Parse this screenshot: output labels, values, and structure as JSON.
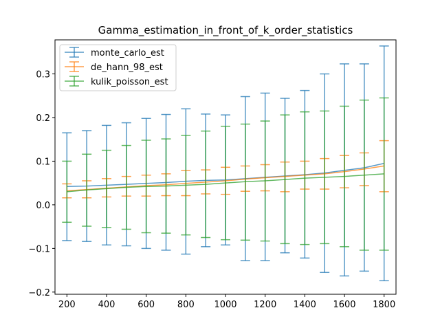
{
  "chart_data": {
    "type": "line",
    "title": "Gamma_estimation_in_front_of_k_order_statistics",
    "xlabel": "",
    "ylabel": "",
    "x": [
      200,
      300,
      400,
      500,
      600,
      700,
      800,
      900,
      1000,
      1100,
      1200,
      1300,
      1400,
      1500,
      1600,
      1700,
      1800
    ],
    "xlim": [
      140,
      1860
    ],
    "ylim": [
      -0.205,
      0.378
    ],
    "xticks": [
      200,
      400,
      600,
      800,
      1000,
      1200,
      1400,
      1600,
      1800
    ],
    "yticks": [
      -0.2,
      -0.1,
      0.0,
      0.1,
      0.2,
      0.3
    ],
    "ytick_labels": [
      "−0.2",
      "−0.1",
      "0.0",
      "0.1",
      "0.2",
      "0.3"
    ],
    "grid": false,
    "legend_position": "top-left",
    "series": [
      {
        "name": "monte_carlo_est",
        "color": "#1f77b4",
        "values": [
          0.042,
          0.043,
          0.045,
          0.047,
          0.049,
          0.051,
          0.054,
          0.056,
          0.057,
          0.06,
          0.063,
          0.066,
          0.069,
          0.073,
          0.079,
          0.085,
          0.095
        ],
        "error_upper": [
          0.165,
          0.17,
          0.182,
          0.188,
          0.198,
          0.207,
          0.22,
          0.208,
          0.206,
          0.248,
          0.256,
          0.244,
          0.262,
          0.3,
          0.323,
          0.323,
          0.364
        ],
        "error_lower": [
          -0.082,
          -0.084,
          -0.092,
          -0.094,
          -0.1,
          -0.104,
          -0.113,
          -0.096,
          -0.092,
          -0.128,
          -0.128,
          -0.11,
          -0.122,
          -0.155,
          -0.163,
          -0.152,
          -0.174
        ]
      },
      {
        "name": "de_hann_98_est",
        "color": "#ff7f0e",
        "values": [
          0.032,
          0.035,
          0.038,
          0.041,
          0.044,
          0.046,
          0.049,
          0.052,
          0.055,
          0.059,
          0.062,
          0.065,
          0.068,
          0.071,
          0.076,
          0.082,
          0.089
        ],
        "error_upper": [
          0.048,
          0.055,
          0.06,
          0.065,
          0.068,
          0.071,
          0.079,
          0.08,
          0.086,
          0.089,
          0.092,
          0.098,
          0.1,
          0.106,
          0.113,
          0.119,
          0.147
        ],
        "error_lower": [
          0.016,
          0.016,
          0.018,
          0.02,
          0.02,
          0.021,
          0.021,
          0.025,
          0.024,
          0.031,
          0.032,
          0.03,
          0.036,
          0.036,
          0.039,
          0.044,
          0.03
        ]
      },
      {
        "name": "kulik_poisson_est",
        "color": "#2ca02c",
        "values": [
          0.03,
          0.034,
          0.037,
          0.04,
          0.042,
          0.043,
          0.045,
          0.047,
          0.05,
          0.053,
          0.055,
          0.058,
          0.061,
          0.063,
          0.065,
          0.068,
          0.071
        ],
        "error_upper": [
          0.1,
          0.116,
          0.125,
          0.136,
          0.148,
          0.151,
          0.159,
          0.169,
          0.18,
          0.185,
          0.192,
          0.206,
          0.213,
          0.215,
          0.226,
          0.24,
          0.245
        ],
        "error_lower": [
          -0.04,
          -0.049,
          -0.052,
          -0.056,
          -0.064,
          -0.065,
          -0.069,
          -0.075,
          -0.08,
          -0.081,
          -0.083,
          -0.089,
          -0.091,
          -0.089,
          -0.096,
          -0.104,
          -0.104
        ]
      }
    ]
  }
}
